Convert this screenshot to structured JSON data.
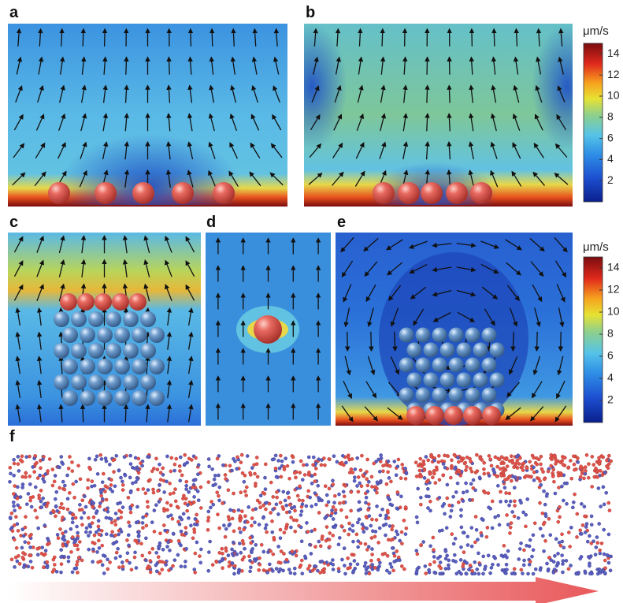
{
  "panels": [
    {
      "label": "a"
    },
    {
      "label": "b"
    },
    {
      "label": "c"
    },
    {
      "label": "d"
    },
    {
      "label": "e"
    },
    {
      "label": "f"
    }
  ],
  "colorbars": [
    {
      "unit": "μm/s",
      "lim": [
        0,
        15
      ],
      "ticks": [
        2,
        4,
        6,
        8,
        10,
        12,
        14
      ]
    },
    {
      "unit": "μm/s",
      "lim": [
        0,
        15
      ],
      "ticks": [
        2,
        4,
        6,
        8,
        10,
        12,
        14
      ]
    }
  ]
}
